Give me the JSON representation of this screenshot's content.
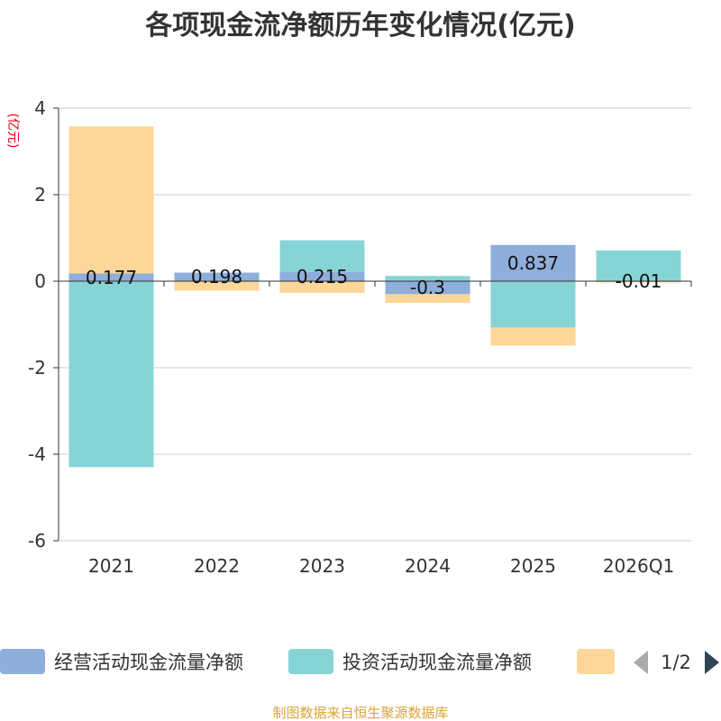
{
  "title": "各项现金流净额历年变化情况(亿元)",
  "source": "制图数据来自恒生聚源数据库",
  "colors": {
    "operating": "#8eaedb",
    "investing": "#87d4d6",
    "financing": "#fdd699",
    "axis": "#333333",
    "grid": "#cccccc",
    "arrow_disabled": "#aaaaaa",
    "arrow_active": "#2f4554"
  },
  "legend": {
    "items": [
      "经营活动现金流量净额",
      "投资活动现金流量净额",
      ""
    ],
    "page": "1/2",
    "prev_icon": "triangle-left-icon",
    "next_icon": "triangle-right-icon"
  },
  "chart_data": {
    "type": "bar",
    "stacked": true,
    "categories": [
      "2021",
      "2022",
      "2023",
      "2024",
      "2025",
      "2026Q1"
    ],
    "ylabel": "(亿元)",
    "ylim": [
      -6,
      4
    ],
    "yticks": [
      4,
      2,
      0,
      -2,
      -4,
      -6
    ],
    "grid": true,
    "legend_position": "bottom",
    "series": [
      {
        "name": "经营活动现金流量净额",
        "values": [
          0.177,
          0.198,
          0.215,
          -0.3,
          0.837,
          -0.01
        ],
        "labels": [
          "0.177",
          "0.198",
          "0.215",
          "-0.3",
          "0.837",
          "-0.01"
        ]
      },
      {
        "name": "投资活动现金流量净额",
        "values": [
          -4.3,
          0,
          0.73,
          0.12,
          -1.07,
          0.71
        ]
      },
      {
        "name": "",
        "values": [
          3.4,
          -0.22,
          -0.27,
          -0.2,
          -0.42,
          -0.02
        ]
      }
    ]
  }
}
